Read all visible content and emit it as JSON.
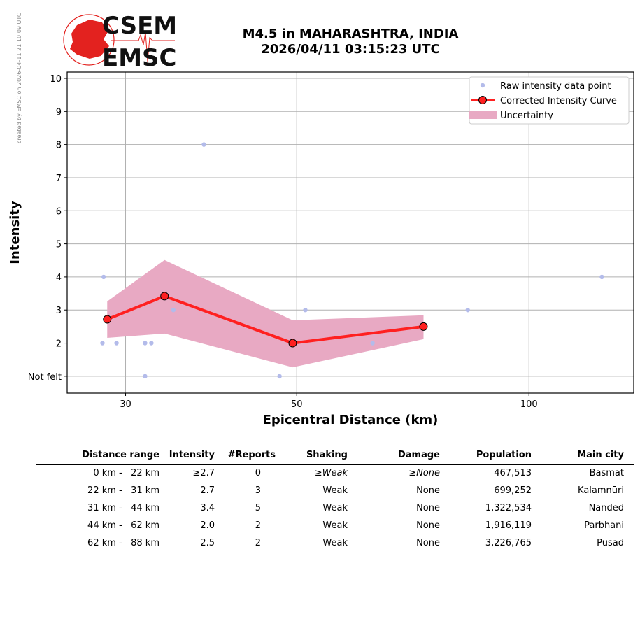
{
  "side_note": "created by EMSC on 2026-04-11 21:10:09 UTC",
  "logo": {
    "line1": "CSEM",
    "line2": "EMSC"
  },
  "title": {
    "line1": "M4.5 in MAHARASHTRA, INDIA",
    "line2": "2026/04/11 03:15:23 UTC"
  },
  "colors": {
    "raw": "#b3bbea",
    "curve": "#ff2020",
    "uncertainty": "#e8a9c3",
    "logo_red": "#e3221f"
  },
  "chart_data": {
    "type": "line",
    "xscale": "log",
    "xlabel": "Epicentral Distance (km)",
    "ylabel": "Intensity",
    "xlim": [
      25.2,
      136.7
    ],
    "ylim": [
      0.49,
      10.19
    ],
    "xticks": [
      {
        "v": 30,
        "label": "30"
      },
      {
        "v": 50,
        "label": "50"
      },
      {
        "v": 100,
        "label": "100"
      }
    ],
    "yticks": [
      {
        "v": 1,
        "label": "Not felt"
      },
      {
        "v": 2,
        "label": "2"
      },
      {
        "v": 3,
        "label": "3"
      },
      {
        "v": 4,
        "label": "4"
      },
      {
        "v": 5,
        "label": "5"
      },
      {
        "v": 6,
        "label": "6"
      },
      {
        "v": 7,
        "label": "7"
      },
      {
        "v": 8,
        "label": "8"
      },
      {
        "v": 9,
        "label": "9"
      },
      {
        "v": 10,
        "label": "10"
      }
    ],
    "grid": true,
    "legend_position": "top-right",
    "legend": [
      "Raw intensity data point",
      "Corrected Intensity Curve",
      "Uncertainty"
    ],
    "raw_points": [
      [
        28.1,
        4
      ],
      [
        28.0,
        2
      ],
      [
        29.2,
        2
      ],
      [
        31.8,
        1
      ],
      [
        31.8,
        2
      ],
      [
        32.4,
        2
      ],
      [
        34.6,
        3
      ],
      [
        37.9,
        8
      ],
      [
        47.5,
        1
      ],
      [
        51.3,
        3
      ],
      [
        62.7,
        2
      ],
      [
        83.3,
        3
      ],
      [
        124.3,
        4
      ]
    ],
    "curve": [
      [
        28.4,
        2.72
      ],
      [
        33.7,
        3.42
      ],
      [
        49.4,
        2.0
      ],
      [
        73.0,
        2.5
      ]
    ],
    "uncertainty_upper": [
      3.26,
      4.51,
      2.69,
      2.84
    ],
    "uncertainty_lower": [
      2.16,
      2.29,
      1.27,
      2.12
    ]
  },
  "table": {
    "headers": [
      "Distance range",
      "Intensity",
      "#Reports",
      "Shaking",
      "Damage",
      "Population",
      "Main city"
    ],
    "rows": [
      [
        "0 km -   22 km",
        "≥2.7",
        "0",
        "≥Weak",
        "≥None",
        "467,513",
        "Basmat"
      ],
      [
        "22 km -   31 km",
        "2.7",
        "3",
        "Weak",
        "None",
        "699,252",
        "Kalamnūri"
      ],
      [
        "31 km -   44 km",
        "3.4",
        "5",
        "Weak",
        "None",
        "1,322,534",
        "Nanded"
      ],
      [
        "44 km -   62 km",
        "2.0",
        "2",
        "Weak",
        "None",
        "1,916,119",
        "Parbhani"
      ],
      [
        "62 km -   88 km",
        "2.5",
        "2",
        "Weak",
        "None",
        "3,226,765",
        "Pusad"
      ]
    ]
  }
}
